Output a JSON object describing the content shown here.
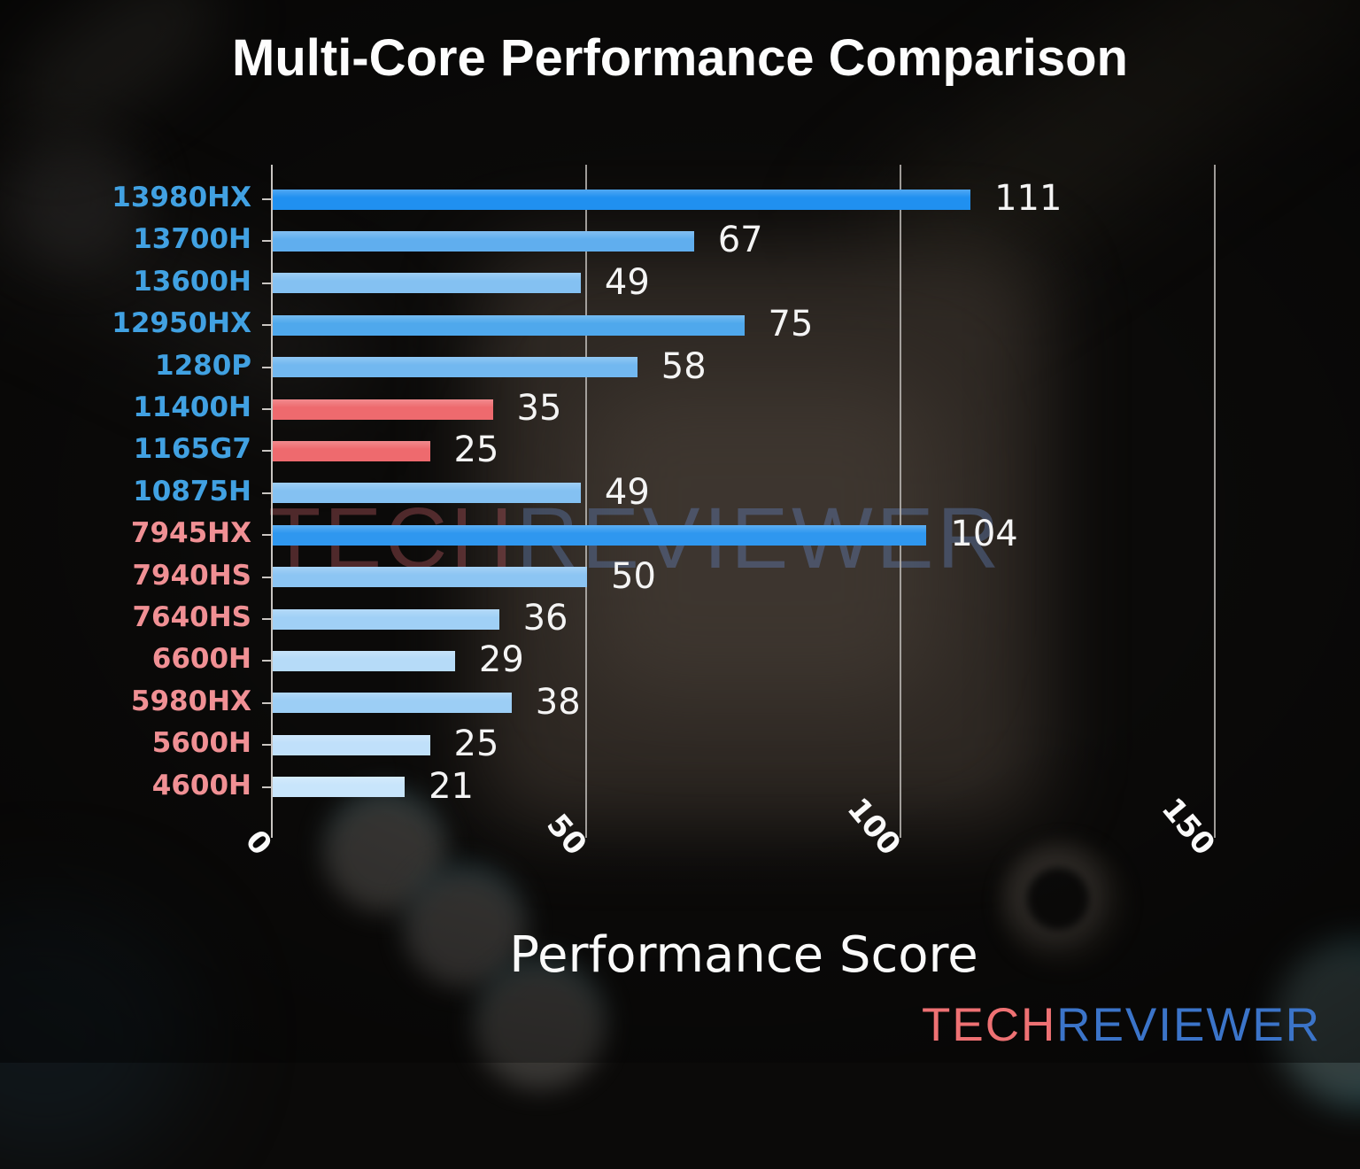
{
  "title": "Multi-Core Performance Comparison",
  "watermark_center": {
    "part1": "TECH",
    "part2": "REVIEWER"
  },
  "logo": {
    "part1": "TECH",
    "part2": "REVIEWER"
  },
  "colors": {
    "intel_label": "#41a1e2",
    "amd_label": "#f09094",
    "highlight_bar": "#ee6a6e",
    "axis": "#c9c5c1",
    "grid": "#b9b5b1",
    "value_text": "#f4f4f4",
    "logo_tech": "#ee7173",
    "logo_reviewer": "#3b74c9"
  },
  "chart_data": {
    "type": "bar",
    "orientation": "horizontal",
    "title": "Multi-Core Performance Comparison",
    "xlabel": "Performance Score",
    "ylabel": "",
    "xlim": [
      0,
      160
    ],
    "xticks": [
      0,
      50,
      100,
      150
    ],
    "grid": true,
    "legend": false,
    "categories": [
      "13980HX",
      "13700H",
      "13600H",
      "12950HX",
      "1280P",
      "11400H",
      "1165G7",
      "10875H",
      "7945HX",
      "7940HS",
      "7640HS",
      "6600H",
      "5980HX",
      "5600H",
      "4600H"
    ],
    "values": [
      111,
      67,
      49,
      75,
      58,
      35,
      25,
      49,
      104,
      50,
      36,
      29,
      38,
      25,
      21
    ],
    "bars": [
      {
        "label": "13980HX",
        "value": 111,
        "vendor": "intel",
        "bar_color": "#2090f0",
        "label_color": "#41a1e2"
      },
      {
        "label": "13700H",
        "value": 67,
        "vendor": "intel",
        "bar_color": "#60aeee",
        "label_color": "#41a1e2"
      },
      {
        "label": "13600H",
        "value": 49,
        "vendor": "intel",
        "bar_color": "#84c1f2",
        "label_color": "#41a1e2"
      },
      {
        "label": "12950HX",
        "value": 75,
        "vendor": "intel",
        "bar_color": "#4fa8ec",
        "label_color": "#41a1e2"
      },
      {
        "label": "1280P",
        "value": 58,
        "vendor": "intel",
        "bar_color": "#72b8f0",
        "label_color": "#41a1e2"
      },
      {
        "label": "11400H",
        "value": 35,
        "vendor": "intel",
        "bar_color": "#ee6a6e",
        "label_color": "#41a1e2"
      },
      {
        "label": "1165G7",
        "value": 25,
        "vendor": "intel",
        "bar_color": "#ee6a6e",
        "label_color": "#41a1e2"
      },
      {
        "label": "10875H",
        "value": 49,
        "vendor": "intel",
        "bar_color": "#84c1f2",
        "label_color": "#41a1e2"
      },
      {
        "label": "7945HX",
        "value": 104,
        "vendor": "amd",
        "bar_color": "#2f97ef",
        "label_color": "#f09094"
      },
      {
        "label": "7940HS",
        "value": 50,
        "vendor": "amd",
        "bar_color": "#8cc5f3",
        "label_color": "#f09094"
      },
      {
        "label": "7640HS",
        "value": 36,
        "vendor": "amd",
        "bar_color": "#a0d0f6",
        "label_color": "#f09094"
      },
      {
        "label": "6600H",
        "value": 29,
        "vendor": "amd",
        "bar_color": "#b6dbf8",
        "label_color": "#f09094"
      },
      {
        "label": "5980HX",
        "value": 38,
        "vendor": "amd",
        "bar_color": "#9ccef5",
        "label_color": "#f09094"
      },
      {
        "label": "5600H",
        "value": 25,
        "vendor": "amd",
        "bar_color": "#c0e0fa",
        "label_color": "#f09094"
      },
      {
        "label": "4600H",
        "value": 21,
        "vendor": "amd",
        "bar_color": "#c8e5fb",
        "label_color": "#f09094"
      }
    ]
  }
}
